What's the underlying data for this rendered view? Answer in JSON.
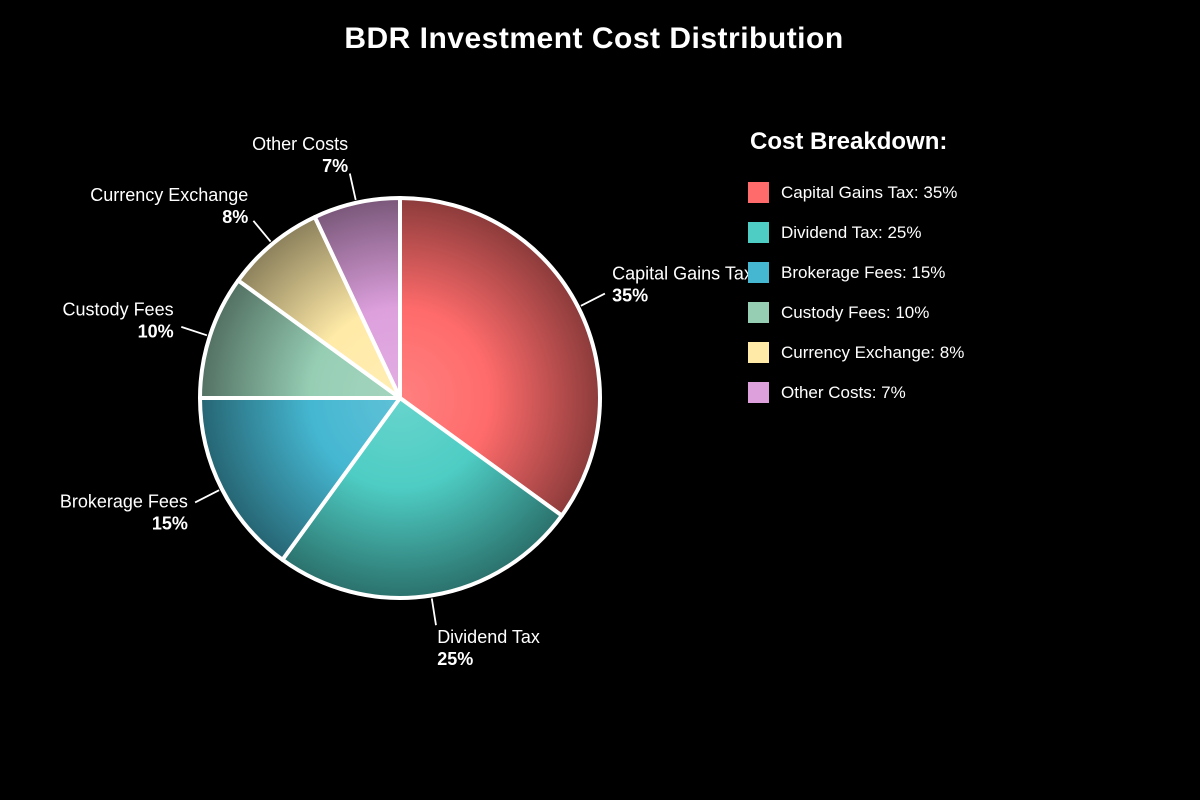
{
  "chart_data": {
    "type": "pie",
    "title": "BDR Investment Cost Distribution",
    "background_color": "#000000",
    "text_color": "#ffffff",
    "slice_border_color": "#ffffff",
    "start_angle": "top",
    "direction": "clockwise",
    "slices": [
      {
        "label": "Capital Gains Tax",
        "value": 35,
        "pct_label": "35%",
        "color": "#FF6B6B"
      },
      {
        "label": "Dividend Tax",
        "value": 25,
        "pct_label": "25%",
        "color": "#4ECDC4"
      },
      {
        "label": "Brokerage Fees",
        "value": 15,
        "pct_label": "15%",
        "color": "#45B7D1"
      },
      {
        "label": "Custody Fees",
        "value": 10,
        "pct_label": "10%",
        "color": "#96CEB4"
      },
      {
        "label": "Currency Exchange",
        "value": 8,
        "pct_label": "8%",
        "color": "#FFEAA7"
      },
      {
        "label": "Other Costs",
        "value": 7,
        "pct_label": "7%",
        "color": "#DDA0DD"
      }
    ],
    "legend": {
      "title": "Cost Breakdown:",
      "position": "right",
      "items": [
        {
          "text": "Capital Gains Tax: 35%",
          "color": "#FF6B6B"
        },
        {
          "text": "Dividend Tax: 25%",
          "color": "#4ECDC4"
        },
        {
          "text": "Brokerage Fees: 15%",
          "color": "#45B7D1"
        },
        {
          "text": "Custody Fees: 10%",
          "color": "#96CEB4"
        },
        {
          "text": "Currency Exchange: 8%",
          "color": "#FFEAA7"
        },
        {
          "text": "Other Costs: 7%",
          "color": "#DDA0DD"
        }
      ]
    }
  }
}
